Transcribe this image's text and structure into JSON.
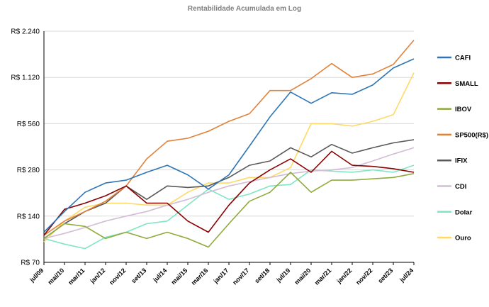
{
  "chart_data": {
    "type": "line",
    "title": "Rentabilidade Acumulada em Log",
    "y_scale": "log2",
    "ylim": [
      70,
      2240
    ],
    "ytick_values": [
      70,
      140,
      280,
      560,
      1120,
      2240
    ],
    "ytick_labels": [
      "R$ 70",
      "R$ 140",
      "R$ 280",
      "R$ 560",
      "R$ 1.120",
      "R$ 2.240"
    ],
    "grid": true,
    "legend_position": "right",
    "x": [
      "jul/09",
      "mai/10",
      "mar/11",
      "jan/12",
      "nov/12",
      "set/13",
      "jul/14",
      "mai/15",
      "mar/16",
      "jan/17",
      "nov/17",
      "set/18",
      "jul/19",
      "mai/20",
      "mar/21",
      "jan/22",
      "nov/22",
      "set/23",
      "jul/24"
    ],
    "series": [
      {
        "name": "CAFI",
        "color": "#2e75b6",
        "values": [
          110,
          150,
          200,
          230,
          240,
          270,
          300,
          260,
          210,
          260,
          400,
          620,
          900,
          760,
          890,
          870,
          1000,
          1290,
          1480
        ]
      },
      {
        "name": "SMALL",
        "color": "#8b0000",
        "values": [
          105,
          155,
          170,
          190,
          220,
          170,
          170,
          130,
          110,
          165,
          230,
          280,
          330,
          270,
          370,
          300,
          295,
          285,
          270
        ]
      },
      {
        "name": "IBOV",
        "color": "#8faa3c",
        "values": [
          100,
          125,
          120,
          100,
          110,
          100,
          110,
          100,
          88,
          125,
          175,
          200,
          270,
          200,
          240,
          240,
          245,
          250,
          265
        ]
      },
      {
        "name": "SP500(R$)",
        "color": "#e2823a",
        "values": [
          105,
          130,
          150,
          175,
          220,
          330,
          430,
          450,
          500,
          580,
          650,
          920,
          920,
          1100,
          1380,
          1120,
          1180,
          1360,
          1960
        ]
      },
      {
        "name": "IFIX",
        "color": "#595959",
        "values": [
          100,
          125,
          150,
          170,
          220,
          180,
          220,
          215,
          220,
          250,
          300,
          320,
          390,
          340,
          410,
          360,
          390,
          420,
          440
        ]
      },
      {
        "name": "CDI",
        "color": "#d3bcd6",
        "values": [
          100,
          108,
          118,
          130,
          140,
          150,
          165,
          180,
          200,
          220,
          235,
          250,
          265,
          275,
          280,
          290,
          320,
          355,
          390
        ]
      },
      {
        "name": "Dolar",
        "color": "#7fe6c3",
        "values": [
          100,
          92,
          86,
          102,
          110,
          125,
          130,
          165,
          210,
          180,
          195,
          220,
          225,
          280,
          275,
          270,
          280,
          270,
          300
        ]
      },
      {
        "name": "Ouro",
        "color": "#ffd966",
        "values": [
          95,
          130,
          160,
          170,
          170,
          165,
          165,
          200,
          230,
          230,
          250,
          250,
          290,
          560,
          560,
          540,
          580,
          640,
          1200
        ]
      }
    ]
  }
}
